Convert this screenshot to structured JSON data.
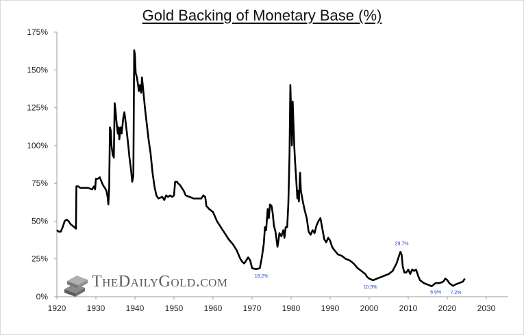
{
  "chart_data": {
    "type": "line",
    "title": "Gold Backing of Monetary Base (%)",
    "xlabel": "",
    "ylabel": "",
    "xlim": [
      1920,
      2030
    ],
    "ylim": [
      0,
      175
    ],
    "x_ticks": [
      1920,
      1930,
      1940,
      1950,
      1960,
      1970,
      1980,
      1990,
      2000,
      2010,
      2020,
      2030
    ],
    "y_ticks": [
      0,
      25,
      50,
      75,
      100,
      125,
      150,
      175
    ],
    "y_tick_labels": [
      "0%",
      "25%",
      "50%",
      "75%",
      "100%",
      "125%",
      "150%",
      "175%"
    ],
    "grid": false,
    "series": [
      {
        "name": "Gold Backing of Monetary Base (%)",
        "color": "#000000",
        "points": [
          [
            1920,
            44
          ],
          [
            1920.5,
            43
          ],
          [
            1921,
            43
          ],
          [
            1921.5,
            46
          ],
          [
            1922,
            50
          ],
          [
            1922.5,
            51
          ],
          [
            1923,
            50
          ],
          [
            1923.5,
            48
          ],
          [
            1924,
            47
          ],
          [
            1924.5,
            46
          ],
          [
            1924.9,
            45
          ],
          [
            1925,
            73
          ],
          [
            1925.5,
            73
          ],
          [
            1926,
            72
          ],
          [
            1927,
            72
          ],
          [
            1928,
            72
          ],
          [
            1929,
            71
          ],
          [
            1929.5,
            73
          ],
          [
            1929.8,
            71
          ],
          [
            1930,
            78
          ],
          [
            1930.5,
            78
          ],
          [
            1931,
            79
          ],
          [
            1931.3,
            77
          ],
          [
            1931.6,
            75
          ],
          [
            1932,
            73
          ],
          [
            1932.3,
            72
          ],
          [
            1932.7,
            70
          ],
          [
            1933,
            66
          ],
          [
            1933.2,
            61
          ],
          [
            1933.4,
            72
          ],
          [
            1933.6,
            112
          ],
          [
            1933.8,
            110
          ],
          [
            1934,
            100
          ],
          [
            1934.3,
            94
          ],
          [
            1934.6,
            92
          ],
          [
            1934.8,
            128
          ],
          [
            1935,
            124
          ],
          [
            1935.3,
            115
          ],
          [
            1935.6,
            108
          ],
          [
            1935.8,
            112
          ],
          [
            1936,
            104
          ],
          [
            1936.3,
            112
          ],
          [
            1936.6,
            108
          ],
          [
            1937,
            118
          ],
          [
            1937.3,
            122
          ],
          [
            1937.6,
            116
          ],
          [
            1938,
            107
          ],
          [
            1938.3,
            100
          ],
          [
            1938.6,
            92
          ],
          [
            1939,
            84
          ],
          [
            1939.3,
            76
          ],
          [
            1939.6,
            80
          ],
          [
            1939.8,
            163
          ],
          [
            1940,
            160
          ],
          [
            1940.2,
            148
          ],
          [
            1940.5,
            145
          ],
          [
            1940.8,
            140
          ],
          [
            1941,
            136
          ],
          [
            1941.3,
            140
          ],
          [
            1941.6,
            135
          ],
          [
            1941.8,
            145
          ],
          [
            1942,
            140
          ],
          [
            1942.3,
            132
          ],
          [
            1942.6,
            124
          ],
          [
            1943,
            115
          ],
          [
            1943.5,
            104
          ],
          [
            1944,
            95
          ],
          [
            1944.5,
            82
          ],
          [
            1945,
            73
          ],
          [
            1945.5,
            67
          ],
          [
            1946,
            65
          ],
          [
            1947,
            66
          ],
          [
            1947.5,
            64
          ],
          [
            1948,
            67
          ],
          [
            1948.5,
            66
          ],
          [
            1949,
            67
          ],
          [
            1949.5,
            66
          ],
          [
            1950,
            67
          ],
          [
            1950.3,
            76
          ],
          [
            1950.8,
            76
          ],
          [
            1951,
            75
          ],
          [
            1951.5,
            74
          ],
          [
            1952,
            72
          ],
          [
            1952.5,
            70
          ],
          [
            1953,
            67
          ],
          [
            1954,
            66
          ],
          [
            1955,
            65
          ],
          [
            1956,
            65
          ],
          [
            1957,
            65
          ],
          [
            1957.5,
            67
          ],
          [
            1958,
            66
          ],
          [
            1958.3,
            60
          ],
          [
            1959,
            58
          ],
          [
            1960,
            56
          ],
          [
            1960.5,
            53
          ],
          [
            1961,
            50
          ],
          [
            1962,
            46
          ],
          [
            1963,
            42
          ],
          [
            1964,
            38
          ],
          [
            1965,
            35
          ],
          [
            1966,
            31
          ],
          [
            1966.5,
            28
          ],
          [
            1967,
            25
          ],
          [
            1967.5,
            23
          ],
          [
            1968,
            22
          ],
          [
            1968.5,
            24
          ],
          [
            1969,
            26
          ],
          [
            1969.5,
            24
          ],
          [
            1970,
            19
          ],
          [
            1970.5,
            18.5
          ],
          [
            1971,
            18.2
          ],
          [
            1971.5,
            18.5
          ],
          [
            1972,
            19
          ],
          [
            1972.5,
            26
          ],
          [
            1973,
            35
          ],
          [
            1973.3,
            46
          ],
          [
            1973.6,
            44
          ],
          [
            1974,
            58
          ],
          [
            1974.3,
            52
          ],
          [
            1974.6,
            61
          ],
          [
            1975,
            60
          ],
          [
            1975.3,
            55
          ],
          [
            1975.6,
            47
          ],
          [
            1976,
            43
          ],
          [
            1976.5,
            33
          ],
          [
            1976.8,
            38
          ],
          [
            1977,
            42
          ],
          [
            1977.5,
            40
          ],
          [
            1978,
            44
          ],
          [
            1978.3,
            39
          ],
          [
            1978.6,
            46
          ],
          [
            1979,
            46
          ],
          [
            1979.3,
            62
          ],
          [
            1979.6,
            95
          ],
          [
            1979.8,
            140
          ],
          [
            1980,
            123
          ],
          [
            1980.2,
            100
          ],
          [
            1980.4,
            129
          ],
          [
            1980.6,
            115
          ],
          [
            1980.8,
            100
          ],
          [
            1981,
            90
          ],
          [
            1981.3,
            78
          ],
          [
            1981.6,
            65
          ],
          [
            1981.8,
            70
          ],
          [
            1982,
            63
          ],
          [
            1982.3,
            82
          ],
          [
            1982.5,
            70
          ],
          [
            1983,
            63
          ],
          [
            1983.5,
            57
          ],
          [
            1984,
            52
          ],
          [
            1984.5,
            43
          ],
          [
            1985,
            41
          ],
          [
            1985.5,
            44
          ],
          [
            1986,
            42
          ],
          [
            1986.5,
            47
          ],
          [
            1987,
            50
          ],
          [
            1987.5,
            52
          ],
          [
            1988,
            45
          ],
          [
            1988.5,
            38
          ],
          [
            1989,
            36
          ],
          [
            1989.5,
            39
          ],
          [
            1990,
            37
          ],
          [
            1990.5,
            33
          ],
          [
            1991,
            31
          ],
          [
            1992,
            28
          ],
          [
            1993,
            27
          ],
          [
            1994,
            25
          ],
          [
            1995,
            24
          ],
          [
            1996,
            22
          ],
          [
            1997,
            19
          ],
          [
            1998,
            17
          ],
          [
            1999,
            15
          ],
          [
            1999.5,
            13
          ],
          [
            2000,
            12
          ],
          [
            2001,
            10.9
          ],
          [
            2002,
            12
          ],
          [
            2003,
            13
          ],
          [
            2004,
            14
          ],
          [
            2005,
            15
          ],
          [
            2006,
            17
          ],
          [
            2007,
            22
          ],
          [
            2007.5,
            26
          ],
          [
            2008,
            29.7
          ],
          [
            2008.3,
            28
          ],
          [
            2008.6,
            20
          ],
          [
            2009,
            16
          ],
          [
            2009.5,
            16
          ],
          [
            2010,
            18
          ],
          [
            2010.5,
            15
          ],
          [
            2011,
            18
          ],
          [
            2011.5,
            17
          ],
          [
            2012,
            18
          ],
          [
            2012.5,
            14
          ],
          [
            2013,
            11
          ],
          [
            2013.5,
            10
          ],
          [
            2014,
            9
          ],
          [
            2015,
            8
          ],
          [
            2016,
            6.9
          ],
          [
            2016.5,
            8
          ],
          [
            2017,
            9
          ],
          [
            2018,
            9
          ],
          [
            2019,
            10
          ],
          [
            2019.5,
            12
          ],
          [
            2020,
            11
          ],
          [
            2020.5,
            9
          ],
          [
            2021,
            8
          ],
          [
            2021.5,
            7.2
          ],
          [
            2022,
            8
          ],
          [
            2023,
            9
          ],
          [
            2024,
            10
          ],
          [
            2024.5,
            12
          ]
        ]
      }
    ],
    "annotations": [
      {
        "text": "18.2%",
        "x": 1971,
        "y": 18.2
      },
      {
        "text": "29.7%",
        "x": 2008,
        "y": 29.7
      },
      {
        "text": "10.9%",
        "x": 2001,
        "y": 10.9
      },
      {
        "text": "6.9%",
        "x": 2016,
        "y": 6.9
      },
      {
        "text": "7.2%",
        "x": 2021.5,
        "y": 7.2
      }
    ]
  },
  "watermark": {
    "text": "TheDailyGold.com"
  },
  "colors": {
    "line": "#000000",
    "annotation": "#1f3fd1",
    "watermark": "#5c5c5c"
  }
}
